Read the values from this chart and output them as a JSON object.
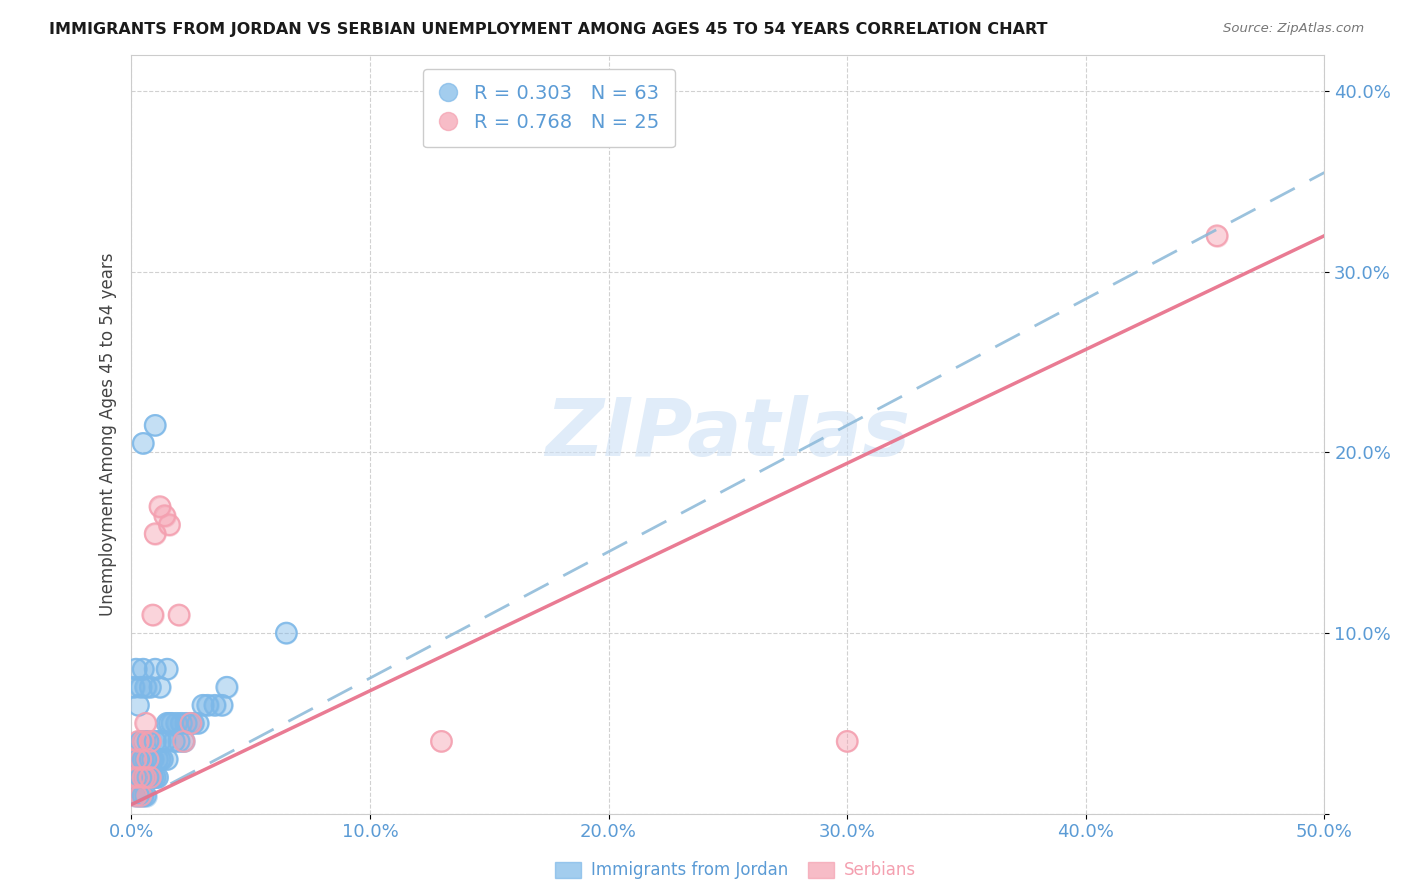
{
  "title": "IMMIGRANTS FROM JORDAN VS SERBIAN UNEMPLOYMENT AMONG AGES 45 TO 54 YEARS CORRELATION CHART",
  "source": "Source: ZipAtlas.com",
  "ylabel": "Unemployment Among Ages 45 to 54 years",
  "xlim": [
    0.0,
    0.5
  ],
  "ylim": [
    0.0,
    0.42
  ],
  "axis_color": "#5b9bd5",
  "grid_color": "#cccccc",
  "watermark_text": "ZIPatlas",
  "watermark_color": "#cce0f5",
  "jordan_R": 0.303,
  "jordan_N": 63,
  "serbian_R": 0.768,
  "serbian_N": 25,
  "jordan_color": "#7db8e8",
  "serbian_color": "#f4a0b0",
  "jordan_line_color": "#8ab8d8",
  "serbian_line_color": "#e8708a",
  "jordan_x": [
    0.001,
    0.002,
    0.002,
    0.003,
    0.003,
    0.003,
    0.004,
    0.004,
    0.004,
    0.004,
    0.005,
    0.005,
    0.005,
    0.005,
    0.006,
    0.006,
    0.006,
    0.007,
    0.007,
    0.007,
    0.008,
    0.008,
    0.009,
    0.009,
    0.01,
    0.01,
    0.011,
    0.011,
    0.012,
    0.012,
    0.013,
    0.014,
    0.015,
    0.015,
    0.016,
    0.017,
    0.018,
    0.019,
    0.02,
    0.021,
    0.022,
    0.023,
    0.025,
    0.026,
    0.028,
    0.03,
    0.032,
    0.035,
    0.038,
    0.04,
    0.001,
    0.002,
    0.003,
    0.004,
    0.005,
    0.006,
    0.008,
    0.01,
    0.012,
    0.015,
    0.005,
    0.01,
    0.065
  ],
  "jordan_y": [
    0.02,
    0.03,
    0.01,
    0.02,
    0.03,
    0.01,
    0.02,
    0.03,
    0.04,
    0.01,
    0.02,
    0.03,
    0.04,
    0.01,
    0.02,
    0.03,
    0.01,
    0.02,
    0.03,
    0.04,
    0.02,
    0.03,
    0.02,
    0.03,
    0.02,
    0.04,
    0.02,
    0.03,
    0.03,
    0.04,
    0.03,
    0.04,
    0.03,
    0.05,
    0.05,
    0.05,
    0.04,
    0.05,
    0.04,
    0.05,
    0.04,
    0.05,
    0.05,
    0.05,
    0.05,
    0.06,
    0.06,
    0.06,
    0.06,
    0.07,
    0.07,
    0.08,
    0.06,
    0.07,
    0.08,
    0.07,
    0.07,
    0.08,
    0.07,
    0.08,
    0.205,
    0.215,
    0.1
  ],
  "serbian_x": [
    0.001,
    0.002,
    0.002,
    0.003,
    0.003,
    0.004,
    0.004,
    0.005,
    0.005,
    0.006,
    0.006,
    0.007,
    0.008,
    0.008,
    0.009,
    0.01,
    0.012,
    0.014,
    0.016,
    0.02,
    0.022,
    0.025,
    0.13,
    0.3,
    0.455
  ],
  "serbian_y": [
    0.02,
    0.01,
    0.03,
    0.02,
    0.04,
    0.01,
    0.03,
    0.02,
    0.04,
    0.02,
    0.05,
    0.03,
    0.02,
    0.04,
    0.11,
    0.155,
    0.17,
    0.165,
    0.16,
    0.11,
    0.04,
    0.05,
    0.04,
    0.04,
    0.32
  ],
  "jordan_line_x": [
    0.0,
    0.5
  ],
  "jordan_line_y": [
    0.005,
    0.355
  ],
  "serbian_line_x": [
    0.0,
    0.5
  ],
  "serbian_line_y": [
    0.005,
    0.32
  ]
}
